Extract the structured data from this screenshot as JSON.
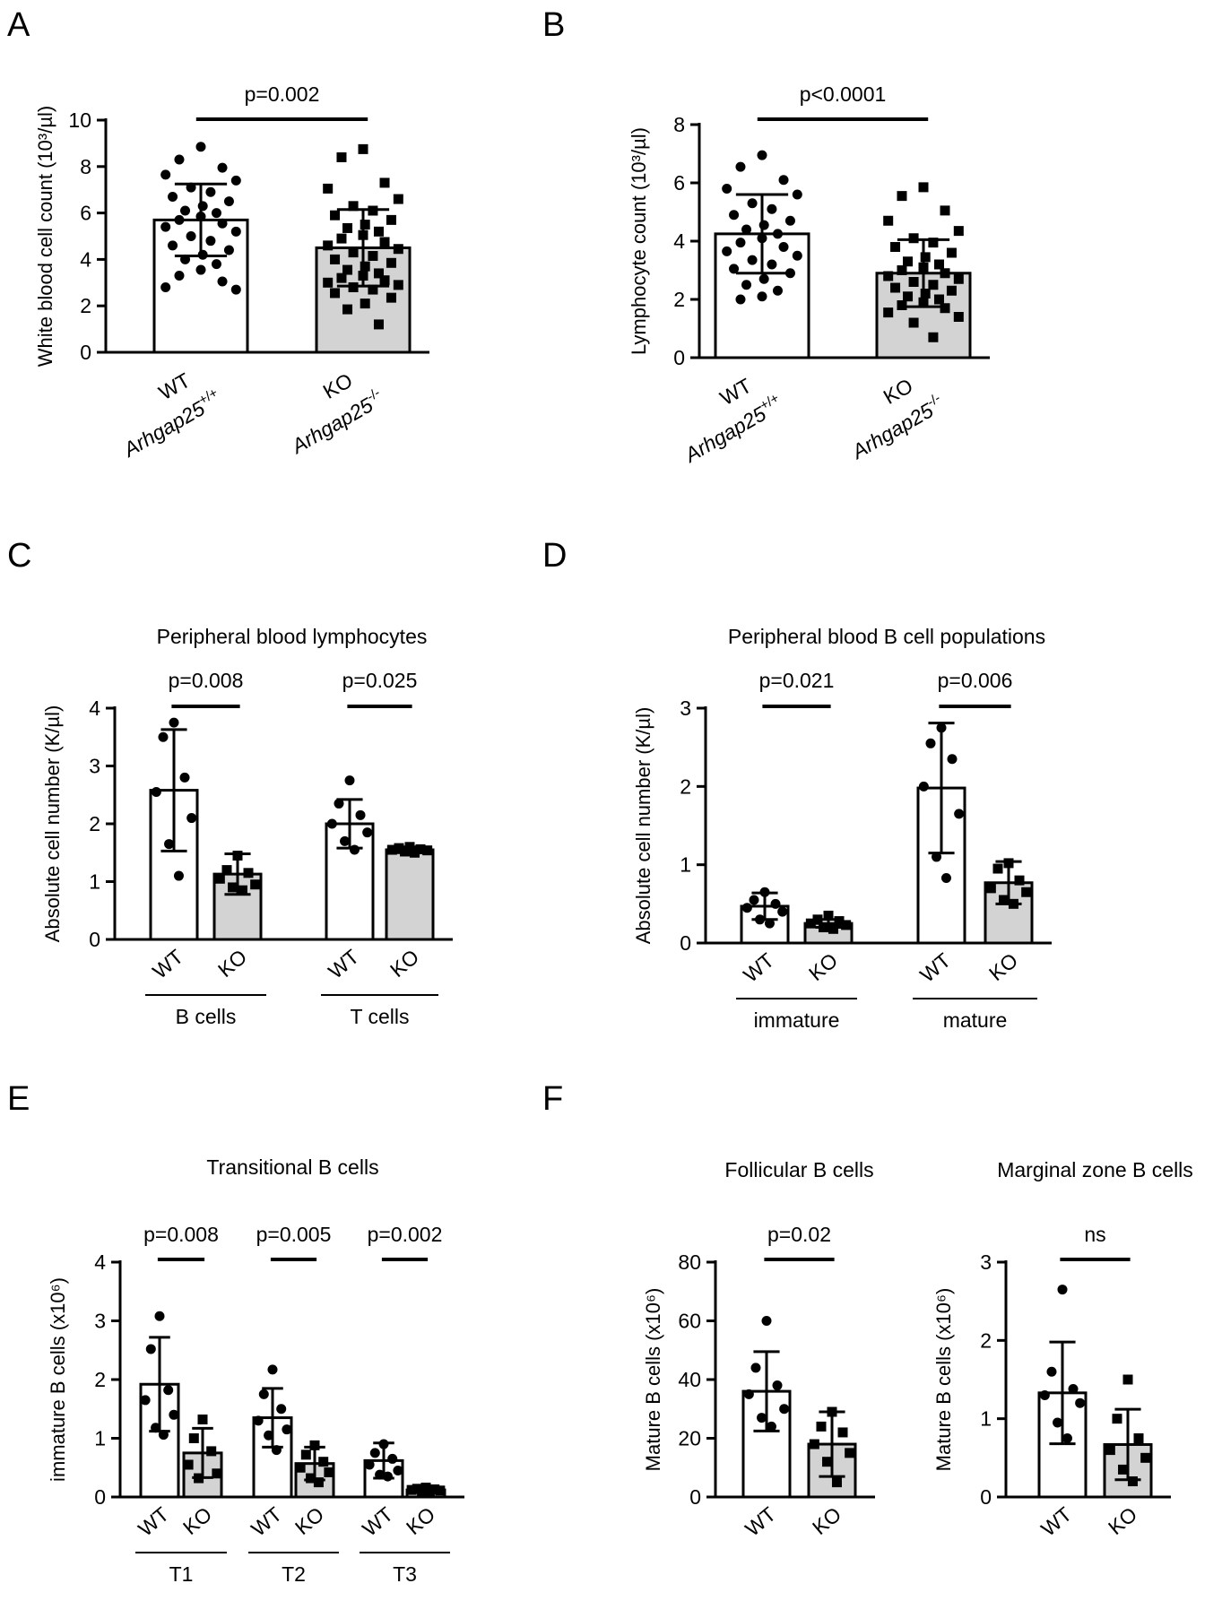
{
  "figure": {
    "panel_letters": [
      "A",
      "B",
      "C",
      "D",
      "E",
      "F"
    ]
  },
  "chart_data": [
    {
      "id": "A",
      "type": "bar",
      "title": "",
      "ylabel": "White blood cell count (10³/µl)",
      "ylim": [
        0,
        10
      ],
      "yticks": [
        0,
        2,
        4,
        6,
        8,
        10
      ],
      "legend": "none",
      "categories": [
        {
          "label": "WT",
          "sublabel": "Arhgap25",
          "sup": "+/+",
          "fill": "#ffffff",
          "marker": "circle"
        },
        {
          "label": "KO",
          "sublabel": "Arhgap25",
          "sup": "-/-",
          "fill": "#d3d3d3",
          "marker": "square"
        }
      ],
      "values": [
        5.7,
        4.5
      ],
      "errors": [
        1.55,
        1.65
      ],
      "points": [
        [
          8.85,
          8.3,
          7.95,
          7.65,
          7.4,
          7.1,
          6.9,
          6.7,
          6.5,
          6.3,
          6.1,
          6.0,
          5.85,
          5.7,
          5.55,
          5.4,
          5.2,
          5.0,
          4.8,
          4.6,
          4.4,
          4.2,
          4.0,
          3.8,
          3.55,
          3.3,
          3.05,
          2.8,
          2.7
        ],
        [
          8.75,
          8.4,
          7.3,
          7.05,
          6.6,
          6.3,
          6.1,
          5.9,
          5.7,
          5.5,
          5.35,
          5.2,
          5.05,
          4.9,
          4.75,
          4.6,
          4.45,
          4.3,
          4.15,
          4.0,
          3.85,
          3.7,
          3.55,
          3.4,
          3.3,
          3.2,
          3.1,
          3.0,
          2.9,
          2.8,
          2.7,
          2.55,
          2.35,
          2.1,
          1.85,
          1.2
        ]
      ],
      "comparisons": [
        {
          "between": [
            0,
            1
          ],
          "label": "p=0.002"
        }
      ]
    },
    {
      "id": "B",
      "type": "bar",
      "title": "",
      "ylabel": "Lymphocyte count (10³/µl)",
      "ylim": [
        0,
        8
      ],
      "yticks": [
        0,
        2,
        4,
        6,
        8
      ],
      "legend": "none",
      "categories": [
        {
          "label": "WT",
          "sublabel": "Arhgap25",
          "sup": "+/+",
          "fill": "#ffffff",
          "marker": "circle"
        },
        {
          "label": "KO",
          "sublabel": "Arhgap25",
          "sup": "-/-",
          "fill": "#d3d3d3",
          "marker": "square"
        }
      ],
      "values": [
        4.25,
        2.9
      ],
      "errors": [
        1.35,
        1.15
      ],
      "points": [
        [
          6.95,
          6.55,
          6.1,
          5.8,
          5.6,
          5.3,
          5.1,
          4.9,
          4.7,
          4.55,
          4.4,
          4.25,
          4.1,
          3.95,
          3.8,
          3.65,
          3.5,
          3.35,
          3.2,
          3.05,
          2.9,
          2.7,
          2.5,
          2.3,
          2.1,
          2.0
        ],
        [
          5.85,
          5.55,
          5.05,
          4.7,
          4.35,
          4.1,
          3.95,
          3.8,
          3.6,
          3.45,
          3.3,
          3.2,
          3.1,
          3.0,
          2.9,
          2.8,
          2.7,
          2.6,
          2.5,
          2.4,
          2.3,
          2.2,
          2.1,
          2.0,
          1.9,
          1.8,
          1.7,
          1.55,
          1.4,
          1.2,
          0.7
        ]
      ],
      "comparisons": [
        {
          "between": [
            0,
            1
          ],
          "label": "p<0.0001"
        }
      ]
    },
    {
      "id": "C",
      "type": "bar",
      "title": "Peripheral blood lymphocytes",
      "ylabel": "Absolute cell number  (K/µl)",
      "ylim": [
        0,
        4
      ],
      "yticks": [
        0,
        1,
        2,
        3,
        4
      ],
      "legend": "none",
      "groups": [
        "B cells",
        "T cells"
      ],
      "categories": [
        {
          "label": "WT",
          "group": 0,
          "fill": "#ffffff",
          "marker": "circle"
        },
        {
          "label": "KO",
          "group": 0,
          "fill": "#d3d3d3",
          "marker": "square"
        },
        {
          "label": "WT",
          "group": 1,
          "fill": "#ffffff",
          "marker": "circle"
        },
        {
          "label": "KO",
          "group": 1,
          "fill": "#d3d3d3",
          "marker": "square"
        }
      ],
      "values": [
        2.58,
        1.13,
        2.0,
        1.55
      ],
      "errors": [
        1.05,
        0.35,
        0.42,
        0.05
      ],
      "points": [
        [
          3.75,
          3.5,
          2.8,
          2.55,
          2.1,
          1.65,
          1.1
        ],
        [
          1.45,
          1.2,
          1.15,
          1.05,
          0.95,
          0.9,
          0.85
        ],
        [
          2.75,
          2.35,
          2.15,
          2.0,
          1.85,
          1.7,
          1.55
        ],
        [
          1.6,
          1.58,
          1.56,
          1.55,
          1.54,
          1.52,
          1.5
        ]
      ],
      "comparisons": [
        {
          "between": [
            0,
            1
          ],
          "label": "p=0.008"
        },
        {
          "between": [
            2,
            3
          ],
          "label": "p=0.025"
        }
      ]
    },
    {
      "id": "D",
      "type": "bar",
      "title": "Peripheral blood B cell populations",
      "ylabel": "Absolute cell number (K/µl)",
      "ylim": [
        0,
        3
      ],
      "yticks": [
        0,
        1,
        2,
        3
      ],
      "legend": "none",
      "groups": [
        "immature",
        "mature"
      ],
      "categories": [
        {
          "label": "WT",
          "group": 0,
          "fill": "#ffffff",
          "marker": "circle"
        },
        {
          "label": "KO",
          "group": 0,
          "fill": "#d3d3d3",
          "marker": "square"
        },
        {
          "label": "WT",
          "group": 1,
          "fill": "#ffffff",
          "marker": "circle"
        },
        {
          "label": "KO",
          "group": 1,
          "fill": "#d3d3d3",
          "marker": "square"
        }
      ],
      "values": [
        0.47,
        0.25,
        1.98,
        0.77
      ],
      "errors": [
        0.17,
        0.05,
        0.83,
        0.27
      ],
      "points": [
        [
          0.65,
          0.55,
          0.5,
          0.45,
          0.4,
          0.3,
          0.25
        ],
        [
          0.35,
          0.3,
          0.28,
          0.25,
          0.23,
          0.2,
          0.18
        ],
        [
          2.75,
          2.55,
          2.35,
          2.0,
          1.65,
          1.1,
          0.83
        ],
        [
          1.02,
          0.95,
          0.8,
          0.7,
          0.65,
          0.55,
          0.5
        ]
      ],
      "comparisons": [
        {
          "between": [
            0,
            1
          ],
          "label": "p=0.021"
        },
        {
          "between": [
            2,
            3
          ],
          "label": "p=0.006"
        }
      ]
    },
    {
      "id": "E",
      "type": "bar",
      "title": "Transitional B cells",
      "ylabel": "immature B cells (x10⁶)",
      "ylim": [
        0,
        4
      ],
      "yticks": [
        0,
        1,
        2,
        3,
        4
      ],
      "legend": "none",
      "groups": [
        "T1",
        "T2",
        "T3"
      ],
      "categories": [
        {
          "label": "WT",
          "group": 0,
          "fill": "#ffffff",
          "marker": "circle"
        },
        {
          "label": "KO",
          "group": 0,
          "fill": "#d3d3d3",
          "marker": "square"
        },
        {
          "label": "WT",
          "group": 1,
          "fill": "#ffffff",
          "marker": "circle"
        },
        {
          "label": "KO",
          "group": 1,
          "fill": "#d3d3d3",
          "marker": "square"
        },
        {
          "label": "WT",
          "group": 2,
          "fill": "#ffffff",
          "marker": "circle"
        },
        {
          "label": "KO",
          "group": 2,
          "fill": "#d3d3d3",
          "marker": "square"
        }
      ],
      "values": [
        1.92,
        0.75,
        1.35,
        0.57,
        0.62,
        0.12
      ],
      "errors": [
        0.8,
        0.42,
        0.5,
        0.28,
        0.3,
        0.04
      ],
      "points": [
        [
          3.08,
          2.52,
          1.82,
          1.65,
          1.4,
          1.18,
          1.06
        ],
        [
          1.32,
          1.0,
          0.78,
          0.55,
          0.4,
          0.32
        ],
        [
          2.17,
          1.75,
          1.5,
          1.3,
          1.15,
          1.05,
          0.8
        ],
        [
          0.88,
          0.72,
          0.6,
          0.5,
          0.42,
          0.32,
          0.25
        ],
        [
          0.9,
          0.75,
          0.65,
          0.55,
          0.45,
          0.38,
          0.35
        ],
        [
          0.16,
          0.14,
          0.13,
          0.12,
          0.11,
          0.1,
          0.09
        ]
      ],
      "comparisons": [
        {
          "between": [
            0,
            1
          ],
          "label": "p=0.008"
        },
        {
          "between": [
            2,
            3
          ],
          "label": "p=0.005"
        },
        {
          "between": [
            4,
            5
          ],
          "label": "p=0.002"
        }
      ]
    },
    {
      "id": "F1",
      "type": "bar",
      "title": "Follicular B cells",
      "ylabel": "Mature B cells (x10⁶)",
      "ylim": [
        0,
        80
      ],
      "yticks": [
        0,
        20,
        40,
        60,
        80
      ],
      "legend": "none",
      "categories": [
        {
          "label": "WT",
          "fill": "#ffffff",
          "marker": "circle"
        },
        {
          "label": "KO",
          "fill": "#d3d3d3",
          "marker": "square"
        }
      ],
      "values": [
        36,
        18
      ],
      "errors": [
        13.5,
        11
      ],
      "points": [
        [
          60,
          44,
          38,
          35,
          30,
          27,
          24
        ],
        [
          29,
          24,
          22,
          18,
          15,
          12,
          5
        ]
      ],
      "comparisons": [
        {
          "between": [
            0,
            1
          ],
          "label": "p=0.02"
        }
      ]
    },
    {
      "id": "F2",
      "type": "bar",
      "title": "Marginal zone B cells",
      "ylabel": "Mature B cells (x10⁶)",
      "ylim": [
        0,
        3
      ],
      "yticks": [
        0,
        1,
        2,
        3
      ],
      "legend": "none",
      "categories": [
        {
          "label": "WT",
          "fill": "#ffffff",
          "marker": "circle"
        },
        {
          "label": "KO",
          "fill": "#d3d3d3",
          "marker": "square"
        }
      ],
      "values": [
        1.33,
        0.67
      ],
      "errors": [
        0.65,
        0.45
      ],
      "points": [
        [
          2.65,
          1.6,
          1.38,
          1.3,
          1.2,
          0.95,
          0.75
        ],
        [
          1.5,
          1.0,
          0.75,
          0.6,
          0.5,
          0.35,
          0.2
        ]
      ],
      "comparisons": [
        {
          "between": [
            0,
            1
          ],
          "label": "ns"
        }
      ]
    }
  ]
}
